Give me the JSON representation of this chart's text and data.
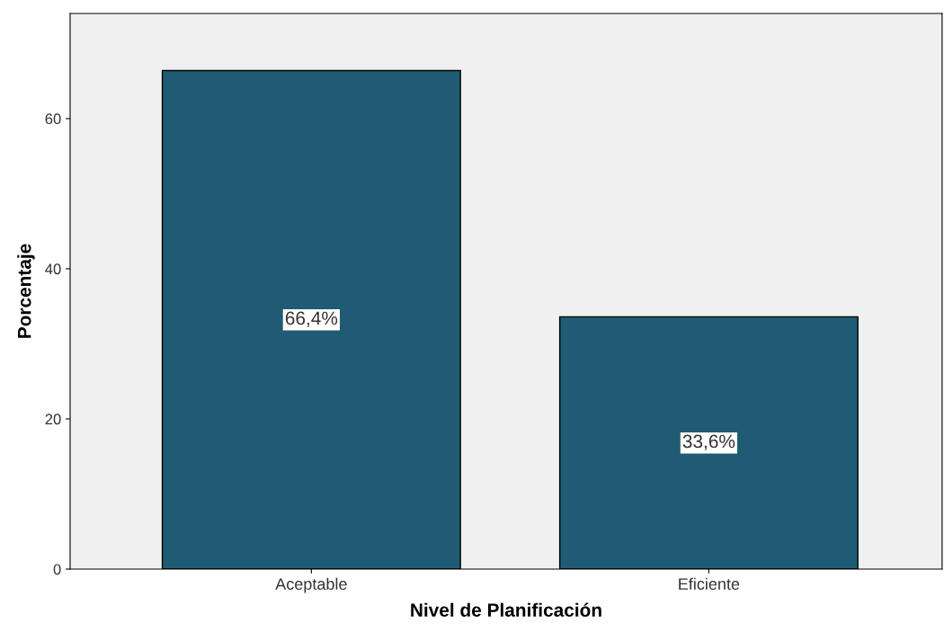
{
  "chart_data": {
    "type": "bar",
    "xlabel": "Nivel de Planificación",
    "ylabel": "Porcentaje",
    "categories": [
      "Aceptable",
      "Eficiente"
    ],
    "values": [
      66.4,
      33.6
    ],
    "value_labels": [
      "66,4%",
      "33,6%"
    ],
    "color": "#1f5c73",
    "ylim": [
      0,
      74
    ],
    "yticks": [
      0,
      20,
      40,
      60
    ],
    "grid": false
  }
}
